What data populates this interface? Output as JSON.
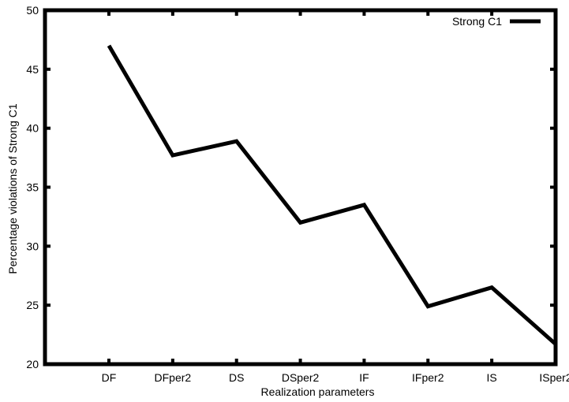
{
  "chart_data": {
    "type": "line",
    "title": "",
    "xlabel": "Realization parameters",
    "ylabel": "Percentage violations of Strong C1",
    "categories": [
      "DF",
      "DFper2",
      "DS",
      "DSper2",
      "IF",
      "IFper2",
      "IS",
      "ISper2"
    ],
    "series": [
      {
        "name": "Strong C1",
        "values": [
          47.0,
          37.7,
          38.9,
          32.0,
          33.5,
          24.9,
          26.5,
          21.7
        ],
        "color": "#000000"
      }
    ],
    "ylim": [
      20,
      50
    ],
    "yticks": [
      20,
      25,
      30,
      35,
      40,
      45,
      50
    ],
    "grid": false,
    "legend_position": "top-right"
  }
}
